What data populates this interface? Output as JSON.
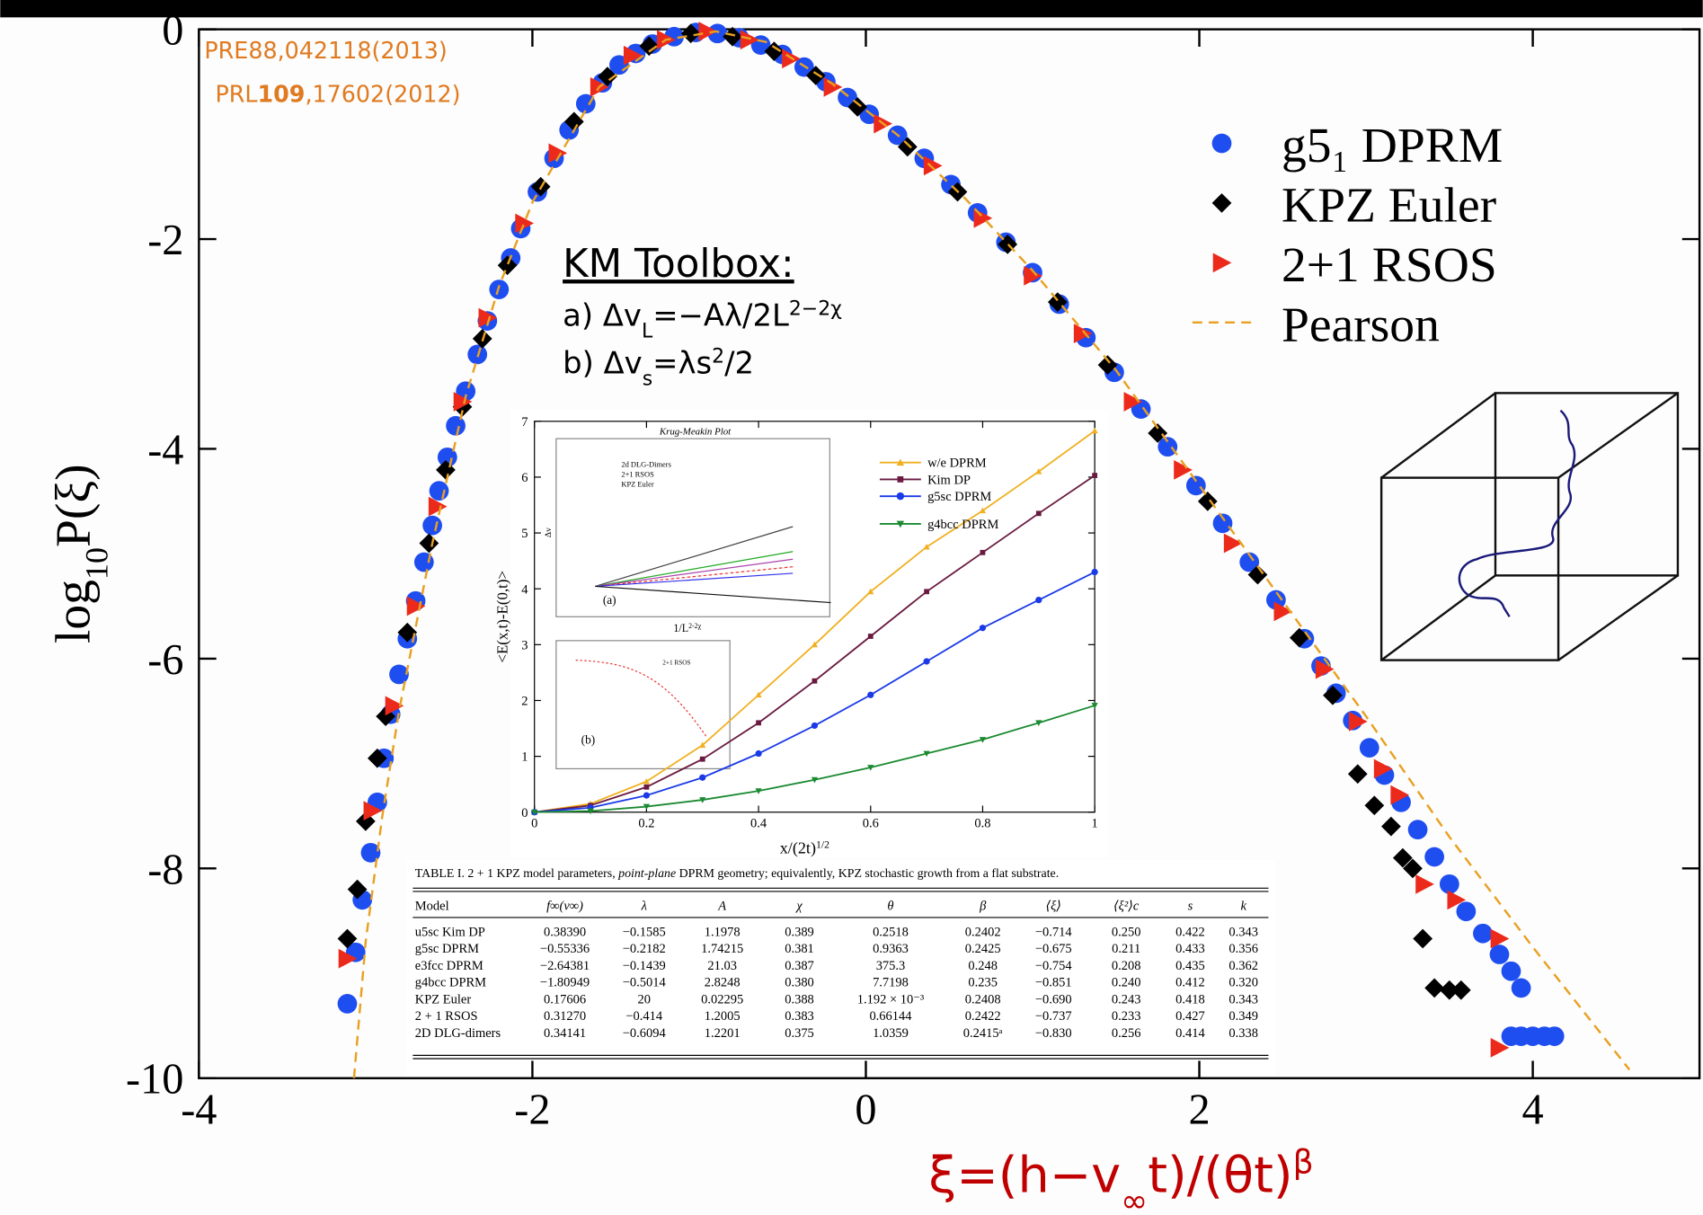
{
  "chart_data": [
    {
      "type": "scatter",
      "xlim": [
        -4,
        5
      ],
      "ylim": [
        -10,
        0
      ],
      "xticks": [
        -4,
        -2,
        0,
        2,
        4
      ],
      "yticks": [
        -10,
        -8,
        -6,
        -4,
        -2,
        0
      ],
      "x_label": [
        "ξ=(h−v",
        "∞",
        "t)/(θt)",
        "β"
      ],
      "y_label": [
        "log",
        "10",
        "P(ξ)"
      ],
      "legend": "upper right",
      "annotations": {
        "ref1": "PRE88,042118(2013)",
        "ref2": [
          "PRL",
          "109",
          ",17602(2012)"
        ],
        "toolbox_title": "KM Toolbox:",
        "toolbox_a": [
          "a) Δv",
          "L",
          "=−Aλ/2L",
          "2−2χ"
        ],
        "toolbox_b": [
          "b) Δv",
          "s",
          "=λs",
          "2",
          "/2"
        ]
      },
      "series": [
        {
          "name": "g5₁ DPRM",
          "color": "#1f4ef0",
          "marker": "circle",
          "x": [
            -3.11,
            -3.06,
            -3.02,
            -2.97,
            -2.93,
            -2.89,
            -2.85,
            -2.8,
            -2.75,
            -2.7,
            -2.65,
            -2.6,
            -2.56,
            -2.51,
            -2.46,
            -2.4,
            -2.33,
            -2.27,
            -2.2,
            -2.13,
            -2.07,
            -1.97,
            -1.87,
            -1.78,
            -1.68,
            -1.58,
            -1.48,
            -1.38,
            -1.28,
            -1.15,
            -1.02,
            -0.89,
            -0.76,
            -0.63,
            -0.5,
            -0.37,
            -0.24,
            -0.11,
            0.02,
            0.19,
            0.35,
            0.51,
            0.67,
            0.84,
            1.0,
            1.16,
            1.32,
            1.49,
            1.65,
            1.81,
            1.98,
            2.14,
            2.3,
            2.46,
            2.63,
            2.73,
            2.82,
            2.92,
            3.02,
            3.11,
            3.21,
            3.31,
            3.41,
            3.5,
            3.6,
            3.7,
            3.8,
            3.87,
            3.93,
            3.87,
            3.93,
            4.0,
            4.07,
            4.13
          ],
          "values": [
            -9.29,
            -8.8,
            -8.3,
            -7.85,
            -7.37,
            -6.95,
            -6.53,
            -6.15,
            -5.81,
            -5.45,
            -5.08,
            -4.73,
            -4.4,
            -4.08,
            -3.78,
            -3.45,
            -3.1,
            -2.78,
            -2.48,
            -2.18,
            -1.9,
            -1.55,
            -1.23,
            -0.96,
            -0.71,
            -0.51,
            -0.34,
            -0.23,
            -0.14,
            -0.07,
            -0.03,
            -0.04,
            -0.08,
            -0.15,
            -0.24,
            -0.36,
            -0.5,
            -0.65,
            -0.81,
            -1.01,
            -1.23,
            -1.48,
            -1.75,
            -2.03,
            -2.32,
            -2.62,
            -2.94,
            -3.27,
            -3.62,
            -3.98,
            -4.35,
            -4.71,
            -5.08,
            -5.44,
            -5.81,
            -6.07,
            -6.33,
            -6.59,
            -6.85,
            -7.11,
            -7.37,
            -7.63,
            -7.89,
            -8.15,
            -8.41,
            -8.62,
            -8.82,
            -8.98,
            -9.14,
            -9.6,
            -9.6,
            -9.6,
            -9.6,
            -9.6
          ]
        },
        {
          "name": "KPZ Euler",
          "color": "#000000",
          "marker": "diamond",
          "x": [
            -3.11,
            -3.05,
            -3.0,
            -2.93,
            -2.88,
            -2.75,
            -2.62,
            -2.52,
            -2.42,
            -2.3,
            -2.15,
            -1.95,
            -1.75,
            -1.55,
            -1.3,
            -1.05,
            -0.8,
            -0.55,
            -0.3,
            -0.05,
            0.25,
            0.55,
            0.85,
            1.15,
            1.45,
            1.75,
            2.05,
            2.35,
            2.6,
            2.8,
            2.95,
            3.05,
            3.15,
            3.22,
            3.28,
            3.34,
            3.41,
            3.5,
            3.57
          ],
          "values": [
            -8.67,
            -8.2,
            -7.55,
            -6.95,
            -6.55,
            -5.75,
            -4.9,
            -4.2,
            -3.6,
            -2.95,
            -2.25,
            -1.5,
            -0.88,
            -0.45,
            -0.16,
            -0.04,
            -0.07,
            -0.21,
            -0.44,
            -0.74,
            -1.12,
            -1.55,
            -2.05,
            -2.6,
            -3.2,
            -3.85,
            -4.5,
            -5.2,
            -5.8,
            -6.35,
            -7.1,
            -7.4,
            -7.6,
            -7.9,
            -8.0,
            -8.67,
            -9.14,
            -9.16,
            -9.16
          ]
        },
        {
          "name": "2+1 RSOS",
          "color": "#ec2a1c",
          "marker": "triangle-right",
          "x": [
            -3.11,
            -2.96,
            -2.83,
            -2.7,
            -2.57,
            -2.42,
            -2.27,
            -2.05,
            -1.85,
            -1.6,
            -1.4,
            -1.2,
            -0.95,
            -0.7,
            -0.45,
            -0.2,
            0.1,
            0.4,
            0.7,
            1.0,
            1.3,
            1.6,
            1.9,
            2.2,
            2.5,
            2.75,
            2.95,
            3.1,
            3.2,
            3.35,
            3.54,
            3.8,
            3.8
          ],
          "values": [
            -8.86,
            -7.45,
            -6.45,
            -5.5,
            -4.55,
            -3.55,
            -2.75,
            -1.85,
            -1.18,
            -0.55,
            -0.25,
            -0.1,
            -0.02,
            -0.1,
            -0.28,
            -0.55,
            -0.9,
            -1.3,
            -1.8,
            -2.35,
            -2.9,
            -3.55,
            -4.2,
            -4.9,
            -5.55,
            -6.1,
            -6.6,
            -7.05,
            -7.3,
            -8.15,
            -8.3,
            -8.67,
            -9.71
          ]
        },
        {
          "name": "Pearson",
          "color": "#e8a020",
          "line": "dashed",
          "x": [
            -3.07,
            -3.0,
            -2.9,
            -2.8,
            -2.6,
            -2.4,
            -2.2,
            -2.0,
            -1.6,
            -1.2,
            -0.9,
            -0.6,
            -0.2,
            0.2,
            0.6,
            1.0,
            1.5,
            2.0,
            2.5,
            3.0,
            3.5,
            4.0,
            4.58
          ],
          "values": [
            -10,
            -8.7,
            -7.5,
            -6.5,
            -4.9,
            -3.5,
            -2.45,
            -1.65,
            -0.55,
            -0.1,
            -0.02,
            -0.12,
            -0.52,
            -1.02,
            -1.62,
            -2.3,
            -3.25,
            -4.35,
            -5.45,
            -6.55,
            -7.7,
            -8.75,
            -9.92
          ]
        }
      ]
    },
    {
      "type": "line",
      "xlim": [
        0,
        1
      ],
      "ylim": [
        0,
        7
      ],
      "xticks": [
        0,
        0.2,
        0.4,
        0.6,
        0.8,
        1
      ],
      "yticks": [
        0,
        1,
        2,
        3,
        4,
        5,
        6,
        7
      ],
      "x_label": [
        "x/(2t)",
        "1/2"
      ],
      "y_label": "<E(x,t)-E(0,t)>",
      "subpanels": {
        "title": "Krug-Meakin Plot",
        "a_legend": [
          "2d DLG-Dimers",
          "2+1 RSOS",
          "KPZ Euler"
        ],
        "a_tag": "(a)",
        "a_ylabel": "Δv",
        "a_xlabel": [
          "1/L",
          "2-2χ"
        ],
        "b_tag": "(b)",
        "b_legend": "2+1 RSOS"
      },
      "x": [
        0,
        0.1,
        0.2,
        0.3,
        0.4,
        0.5,
        0.6,
        0.7,
        0.8,
        0.9,
        1
      ],
      "series": [
        {
          "name": "w/e DPRM",
          "color": "#f0b020",
          "marker": "triangle-up",
          "values": [
            0,
            0.15,
            0.55,
            1.2,
            2.1,
            3.0,
            3.95,
            4.75,
            5.4,
            6.1,
            6.83
          ]
        },
        {
          "name": "Kim DP",
          "color": "#6a1a40",
          "marker": "square",
          "values": [
            0,
            0.12,
            0.45,
            0.95,
            1.6,
            2.35,
            3.15,
            3.95,
            4.65,
            5.35,
            6.03
          ]
        },
        {
          "name": "g5sc DPRM",
          "color": "#1a3ae8",
          "marker": "circle",
          "values": [
            0,
            0.08,
            0.3,
            0.62,
            1.05,
            1.55,
            2.1,
            2.7,
            3.3,
            3.8,
            4.3
          ]
        },
        {
          "name": "g4bcc DPRM",
          "color": "#1a8a30",
          "marker": "triangle-down",
          "values": [
            0,
            0.02,
            0.1,
            0.22,
            0.38,
            0.58,
            0.8,
            1.05,
            1.3,
            1.6,
            1.91
          ]
        }
      ]
    }
  ],
  "table": {
    "caption": [
      "TABLE I.  2 + 1 KPZ model parameters, ",
      "point-plane",
      " DPRM geometry; equivalently, KPZ stochastic growth from a flat substrate."
    ],
    "header": [
      "Model",
      "f∞(v∞)",
      "λ",
      "A",
      "χ",
      "θ",
      "β",
      "⟨ξ⟩",
      "⟨ξ²⟩c",
      "s",
      "k"
    ],
    "rows": [
      [
        "u5sc Kim DP",
        "0.38390",
        "−0.1585",
        "1.1978",
        "0.389",
        "0.2518",
        "0.2402",
        "−0.714",
        "0.250",
        "0.422",
        "0.343"
      ],
      [
        "g5sc DPRM",
        "−0.55336",
        "−0.2182",
        "1.74215",
        "0.381",
        "0.9363",
        "0.2425",
        "−0.675",
        "0.211",
        "0.433",
        "0.356"
      ],
      [
        "e3fcc DPRM",
        "−2.64381",
        "−0.1439",
        "21.03",
        "0.387",
        "375.3",
        "0.248",
        "−0.754",
        "0.208",
        "0.435",
        "0.362"
      ],
      [
        "g4bcc DPRM",
        "−1.80949",
        "−0.5014",
        "2.8248",
        "0.380",
        "7.7198",
        "0.235",
        "−0.851",
        "0.240",
        "0.412",
        "0.320"
      ],
      [
        "KPZ Euler",
        "0.17606",
        "20",
        "0.02295",
        "0.388",
        "1.192 × 10⁻³",
        "0.2408",
        "−0.690",
        "0.243",
        "0.418",
        "0.343"
      ],
      [
        "2 + 1 RSOS",
        "0.31270",
        "−0.414",
        "1.2005",
        "0.383",
        "0.66144",
        "0.2422",
        "−0.737",
        "0.233",
        "0.427",
        "0.349"
      ],
      [
        "2D DLG-dimers",
        "0.34141",
        "−0.6094",
        "1.2201",
        "0.375",
        "1.0359",
        "0.2415ᵃ",
        "−0.830",
        "0.256",
        "0.414",
        "0.338"
      ]
    ]
  }
}
